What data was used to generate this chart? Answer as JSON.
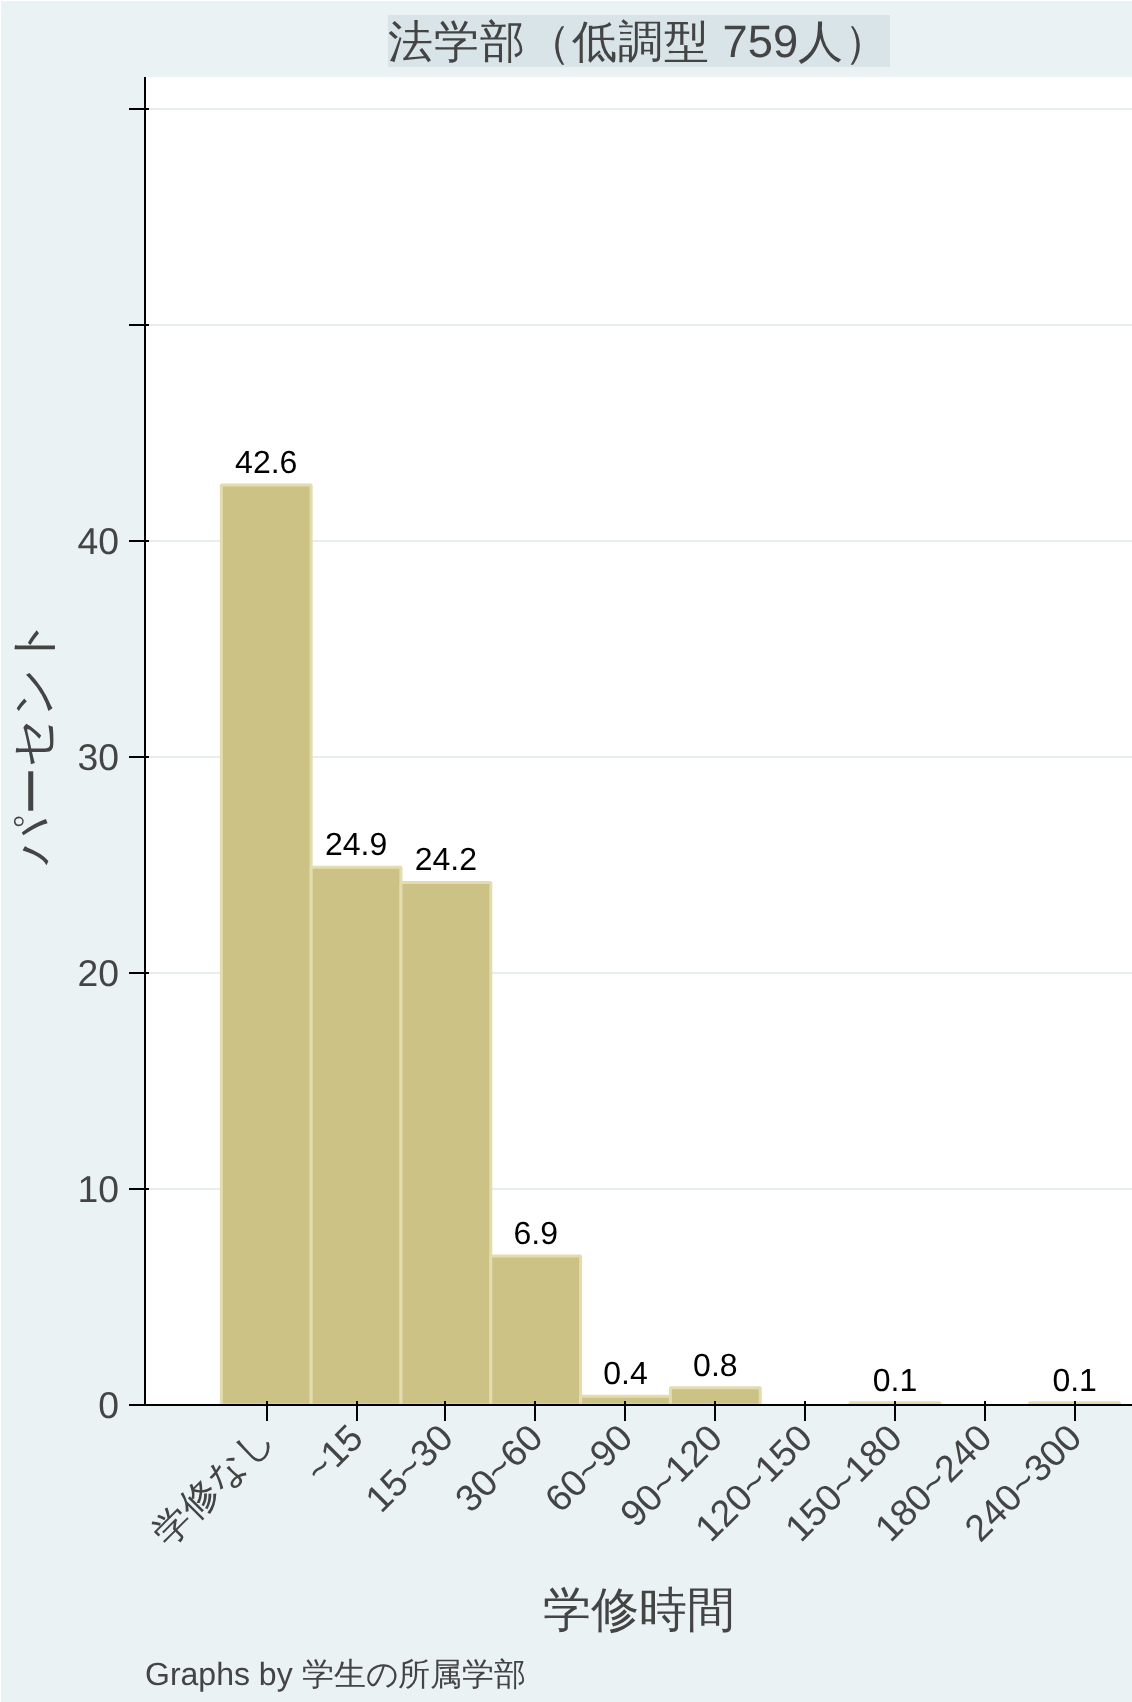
{
  "chart_data": {
    "type": "bar",
    "title": "法学部（低調型 759人）",
    "xlabel": "学修時間",
    "ylabel": "パーセント",
    "categories": [
      "学修なし",
      "~15",
      "15~30",
      "30~60",
      "60~90",
      "90~120",
      "120~150",
      "150~180",
      "180~240",
      "240~300"
    ],
    "values": [
      42.6,
      24.9,
      24.2,
      6.9,
      0.4,
      0.8,
      null,
      0.1,
      null,
      0.1
    ],
    "color": "#cdc285",
    "data_labels": true,
    "ylim": [
      0,
      61.5
    ],
    "yticks": [
      0,
      10,
      20,
      30,
      40,
      {
        "value": 50,
        "label": null
      },
      {
        "value": 60,
        "label": null
      }
    ],
    "grid": "y",
    "annotations": [
      "Graphs by 学生の所属学部"
    ]
  }
}
